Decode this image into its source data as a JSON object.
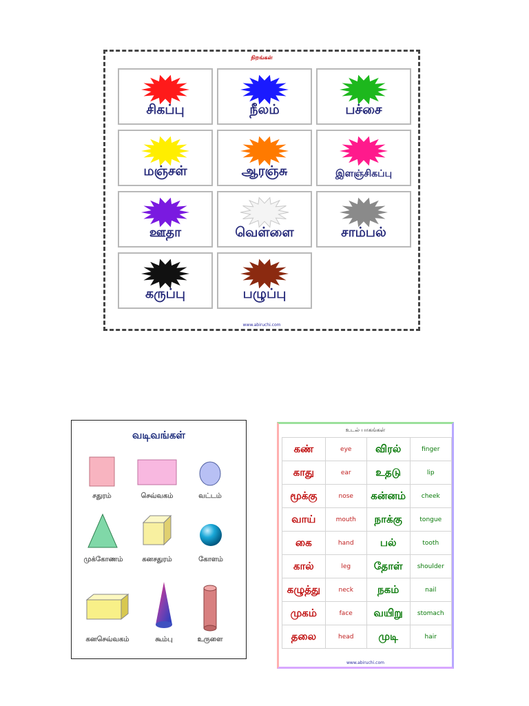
{
  "colors_chart": {
    "title": "நிறங்கள்",
    "footer": "www.abiruchi.com",
    "items": [
      {
        "name": "சிகப்பு",
        "color": "#ff1a1a"
      },
      {
        "name": "நீலம்",
        "color": "#1a1aff"
      },
      {
        "name": "பச்சை",
        "color": "#1db81d"
      },
      {
        "name": "மஞ்சள்",
        "color": "#ffee00"
      },
      {
        "name": "ஆரஞ்சு",
        "color": "#ff7a00"
      },
      {
        "name": "இளஞ்சிகப்பு",
        "color": "#ff1a8c"
      },
      {
        "name": "ஊதா",
        "color": "#7a1ae0"
      },
      {
        "name": "வெள்ளை",
        "color": "#f4f4f4"
      },
      {
        "name": "சாம்பல்",
        "color": "#8a8a8a"
      },
      {
        "name": "கருப்பு",
        "color": "#111111"
      },
      {
        "name": "பழுப்பு",
        "color": "#8b2a10"
      }
    ]
  },
  "shapes_chart": {
    "title": "வடிவங்கள்",
    "items": [
      {
        "name": "சதுரம்",
        "icon": "square-icon",
        "color": "#f8b4c0"
      },
      {
        "name": "செவ்வகம்",
        "icon": "rectangle-icon",
        "color": "#f8b8e0"
      },
      {
        "name": "வட்டம்",
        "icon": "circle-icon",
        "color": "#b8c0f4"
      },
      {
        "name": "முக்கோணம்",
        "icon": "triangle-icon",
        "color": "#80d8a8"
      },
      {
        "name": "கனசதுரம்",
        "icon": "cube-icon",
        "color": "#f8f0a0"
      },
      {
        "name": "கோளம்",
        "icon": "sphere-icon",
        "color": "#1aa8d8"
      },
      {
        "name": "கனசெவ்வகம்",
        "icon": "cuboid-icon",
        "color": "#f8f088"
      },
      {
        "name": "கூம்பு",
        "icon": "cone-icon",
        "color": "#8040b0"
      },
      {
        "name": "உருளை",
        "icon": "cylinder-icon",
        "color": "#d88080"
      }
    ]
  },
  "body_chart": {
    "title": "உடல் பாகங்கள்",
    "footer": "www.abiruchi.com",
    "rows": [
      {
        "tamil_1": "கண்",
        "english_1": "eye",
        "tamil_2": "விரல்",
        "english_2": "finger"
      },
      {
        "tamil_1": "காது",
        "english_1": "ear",
        "tamil_2": "உதடு",
        "english_2": "lip"
      },
      {
        "tamil_1": "மூக்கு",
        "english_1": "nose",
        "tamil_2": "கன்னம்",
        "english_2": "cheek"
      },
      {
        "tamil_1": "வாய்",
        "english_1": "mouth",
        "tamil_2": "நாக்கு",
        "english_2": "tongue"
      },
      {
        "tamil_1": "கை",
        "english_1": "hand",
        "tamil_2": "பல்",
        "english_2": "tooth"
      },
      {
        "tamil_1": "கால்",
        "english_1": "leg",
        "tamil_2": "தோள்",
        "english_2": "shoulder"
      },
      {
        "tamil_1": "கழுத்து",
        "english_1": "neck",
        "tamil_2": "நகம்",
        "english_2": "nail"
      },
      {
        "tamil_1": "முகம்",
        "english_1": "face",
        "tamil_2": "வயிறு",
        "english_2": "stomach"
      },
      {
        "tamil_1": "தலை",
        "english_1": "head",
        "tamil_2": "முடி",
        "english_2": "hair"
      }
    ]
  }
}
